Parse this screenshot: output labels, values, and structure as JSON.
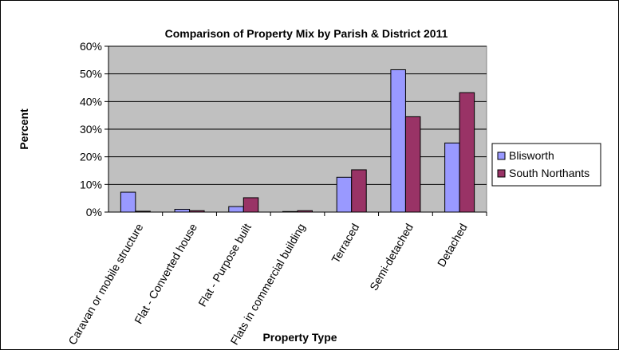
{
  "chart_data": {
    "type": "bar",
    "title": "Comparison of Property Mix by Parish & District 2011",
    "xlabel": "Property Type",
    "ylabel": "Percent",
    "ylim": [
      0,
      0.6
    ],
    "ytick_values": [
      0,
      0.1,
      0.2,
      0.3,
      0.4,
      0.5,
      0.6
    ],
    "ytick_labels": [
      "0%",
      "10%",
      "20%",
      "30%",
      "40%",
      "50%",
      "60%"
    ],
    "grid": true,
    "legend_position": "right",
    "categories": [
      "Caravan or mobile structure",
      "Flat - Converted house",
      "Flat - Purpose built",
      "Flats in commercial building",
      "Terraced",
      "Semi-detached",
      "Detached"
    ],
    "series": [
      {
        "name": "Blisworth",
        "color": "#9999ff",
        "values": [
          0.072,
          0.01,
          0.02,
          0.002,
          0.126,
          0.515,
          0.25
        ]
      },
      {
        "name": "South Northants",
        "color": "#993366",
        "values": [
          0.003,
          0.005,
          0.052,
          0.005,
          0.153,
          0.345,
          0.432
        ]
      }
    ],
    "plot_background": "#c0c0c0"
  }
}
